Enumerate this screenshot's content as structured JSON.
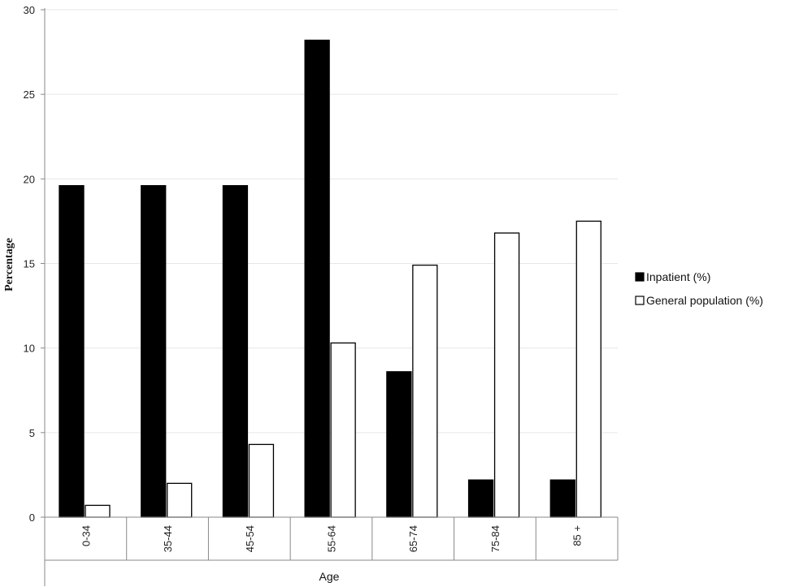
{
  "chart_data": {
    "type": "bar",
    "title": "",
    "xlabel": "Age",
    "ylabel": "Percentage",
    "categories": [
      "0-34",
      "35-44",
      "45-54",
      "55-64",
      "65-74",
      "75-84",
      "85 +"
    ],
    "series": [
      {
        "name": "Inpatient (%)",
        "values": [
          19.6,
          19.6,
          19.6,
          28.2,
          8.6,
          2.2,
          2.2
        ],
        "color": "#000000"
      },
      {
        "name": "General population (%)",
        "values": [
          0.7,
          2.0,
          4.3,
          10.3,
          14.9,
          16.8,
          17.5
        ],
        "color": "#ffffff"
      }
    ],
    "ylim": [
      0,
      30
    ],
    "yticks": [
      0,
      5,
      10,
      15,
      20,
      25,
      30
    ],
    "grid": true,
    "legend": "right"
  }
}
